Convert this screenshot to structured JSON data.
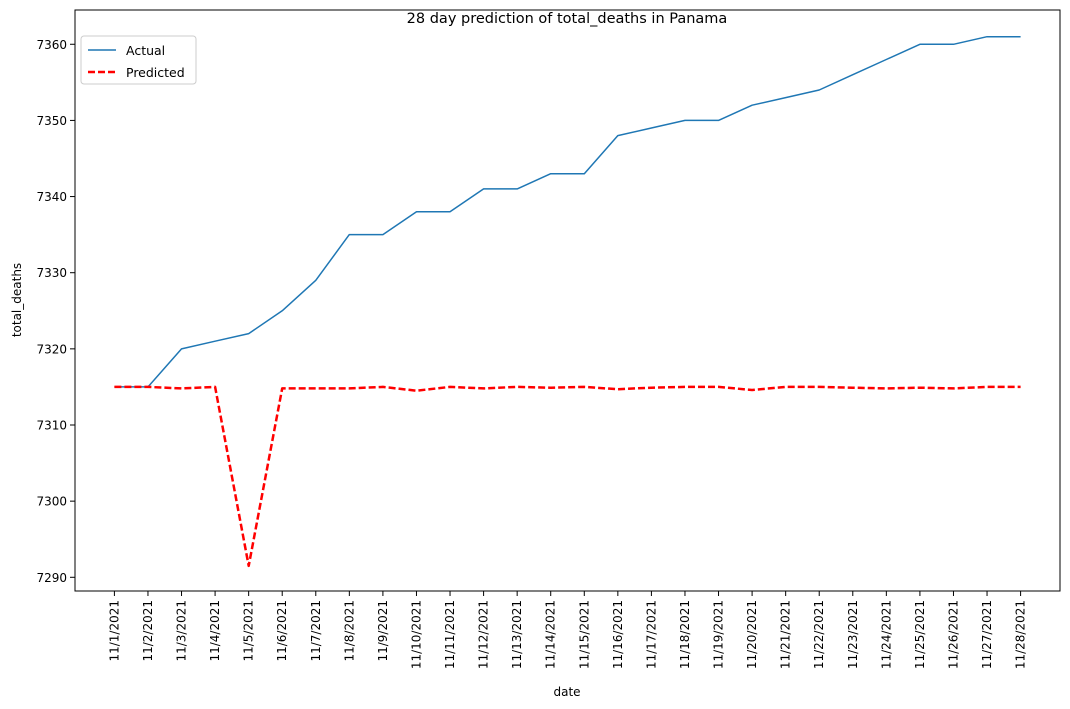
{
  "chart_data": {
    "type": "line",
    "title": "28 day prediction of total_deaths in Panama",
    "xlabel": "date",
    "ylabel": "total_deaths",
    "x": [
      "11/1/2021",
      "11/2/2021",
      "11/3/2021",
      "11/4/2021",
      "11/5/2021",
      "11/6/2021",
      "11/7/2021",
      "11/8/2021",
      "11/9/2021",
      "11/10/2021",
      "11/11/2021",
      "11/12/2021",
      "11/13/2021",
      "11/14/2021",
      "11/15/2021",
      "11/16/2021",
      "11/17/2021",
      "11/18/2021",
      "11/19/2021",
      "11/20/2021",
      "11/21/2021",
      "11/22/2021",
      "11/23/2021",
      "11/24/2021",
      "11/25/2021",
      "11/26/2021",
      "11/27/2021",
      "11/28/2021"
    ],
    "series": [
      {
        "name": "Actual",
        "color": "#1f77b4",
        "style": "solid",
        "values": [
          7315,
          7315,
          7320,
          7321,
          7322,
          7325,
          7329,
          7335,
          7335,
          7338,
          7338,
          7341,
          7341,
          7343,
          7343,
          7348,
          7349,
          7350,
          7350,
          7352,
          7353,
          7354,
          7356,
          7358,
          7360,
          7360,
          7361,
          7361
        ]
      },
      {
        "name": "Predicted",
        "color": "#ff0000",
        "style": "dashed",
        "values": [
          7315,
          7315,
          7314.8,
          7315,
          7291.5,
          7314.8,
          7314.8,
          7314.8,
          7315,
          7314.5,
          7315,
          7314.8,
          7315,
          7314.9,
          7315,
          7314.7,
          7314.9,
          7315,
          7315,
          7314.6,
          7315,
          7315,
          7314.9,
          7314.8,
          7314.9,
          7314.8,
          7315,
          7315
        ]
      }
    ],
    "ylim": [
      7288.2,
      7364.5
    ],
    "yticks": [
      "7290",
      "7300",
      "7310",
      "7320",
      "7330",
      "7340",
      "7350",
      "7360"
    ],
    "grid": false,
    "legend_position": "top-left"
  }
}
